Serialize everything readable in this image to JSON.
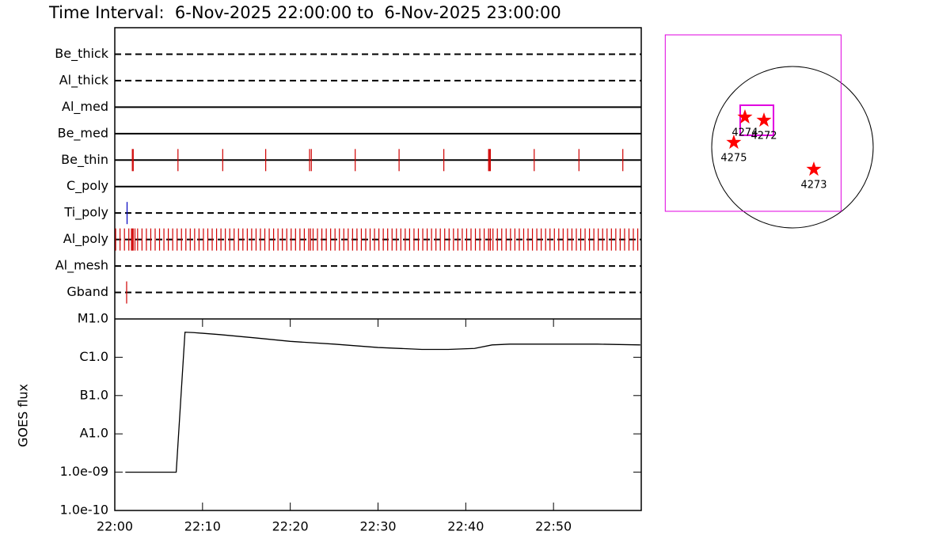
{
  "chart_data": [
    {
      "type": "timeline",
      "title": "Time Interval:  6-Nov-2025 22:00:00 to  6-Nov-2025 23:00:00",
      "xlim": [
        0,
        60
      ],
      "rows": [
        {
          "name": "Be_thick",
          "line": "dashed",
          "times": []
        },
        {
          "name": "Al_thick",
          "line": "dashed",
          "times": []
        },
        {
          "name": "Al_med",
          "line": "solid",
          "times": []
        },
        {
          "name": "Be_med",
          "line": "solid",
          "times": []
        },
        {
          "name": "Be_thin",
          "line": "solid",
          "color": "#d00000",
          "times": [
            2.0,
            2.1,
            7.2,
            12.3,
            17.2,
            22.2,
            22.4,
            27.4,
            32.4,
            37.5,
            42.6,
            42.7,
            42.8,
            47.8,
            52.9,
            57.9
          ]
        },
        {
          "name": "C_poly",
          "line": "solid",
          "times": []
        },
        {
          "name": "Ti_poly",
          "line": "dashed",
          "color": "#0000c0",
          "times": [
            1.4
          ]
        },
        {
          "name": "Al_poly",
          "line": "dashed",
          "color": "#d00000",
          "times": [
            0.1,
            0.6,
            1.1,
            1.6,
            1.9,
            2.0,
            2.1,
            2.3,
            2.6,
            3.1,
            3.6,
            4.1,
            4.6,
            5.1,
            5.6,
            6.1,
            6.6,
            7.1,
            7.6,
            8.1,
            8.6,
            9.1,
            9.6,
            10.1,
            10.6,
            11.1,
            11.6,
            12.1,
            12.6,
            13.1,
            13.6,
            14.1,
            14.6,
            15.1,
            15.6,
            16.1,
            16.6,
            17.1,
            17.6,
            18.1,
            18.6,
            19.1,
            19.6,
            20.1,
            20.6,
            21.1,
            21.6,
            22.1,
            22.3,
            22.6,
            23.1,
            23.6,
            24.1,
            24.6,
            25.1,
            25.6,
            26.1,
            26.6,
            27.1,
            27.6,
            28.1,
            28.6,
            29.1,
            29.6,
            30.1,
            30.6,
            31.1,
            31.6,
            32.1,
            32.6,
            33.1,
            33.6,
            34.1,
            34.6,
            35.1,
            35.6,
            36.1,
            36.6,
            37.1,
            37.6,
            38.1,
            38.6,
            39.1,
            39.6,
            40.1,
            40.6,
            41.1,
            41.6,
            42.1,
            42.6,
            42.8,
            43.1,
            43.6,
            44.1,
            44.6,
            45.1,
            45.6,
            46.1,
            46.6,
            47.1,
            47.6,
            48.1,
            48.6,
            49.1,
            49.6,
            50.1,
            50.6,
            51.1,
            51.6,
            52.1,
            52.6,
            53.1,
            53.6,
            54.1,
            54.6,
            55.1,
            55.6,
            56.1,
            56.6,
            57.1,
            57.6,
            58.1,
            58.6,
            59.1,
            59.6
          ]
        },
        {
          "name": "Al_mesh",
          "line": "dashed",
          "times": []
        },
        {
          "name": "Gband",
          "line": "dashed",
          "color": "#d00000",
          "times": [
            1.35
          ]
        }
      ]
    },
    {
      "type": "line",
      "ylabel": "GOES flux",
      "log": true,
      "color": "#000000",
      "x": [
        1.2,
        7.0,
        8.0,
        9.0,
        12,
        16,
        20,
        25,
        30,
        35,
        38,
        41,
        43,
        45,
        50,
        55,
        59.9
      ],
      "values": [
        1e-09,
        1e-09,
        4.5e-06,
        4.4e-06,
        3.9e-06,
        3.2e-06,
        2.6e-06,
        2.2e-06,
        1.8e-06,
        1.6e-06,
        1.6e-06,
        1.7e-06,
        2.1e-06,
        2.2e-06,
        2.2e-06,
        2.2e-06,
        2.1e-06
      ],
      "xlim": [
        0,
        60
      ],
      "xticks": [
        {
          "value": 0,
          "label": "22:00"
        },
        {
          "value": 10,
          "label": "22:10"
        },
        {
          "value": 20,
          "label": "22:20"
        },
        {
          "value": 30,
          "label": "22:30"
        },
        {
          "value": 40,
          "label": "22:40"
        },
        {
          "value": 50,
          "label": "22:50"
        }
      ],
      "ylim": [
        1e-10,
        1e-05
      ],
      "yticks": [
        {
          "value": 1e-10,
          "label": "1.0e-10"
        },
        {
          "value": 1e-09,
          "label": "1.0e-09"
        },
        {
          "value": 1e-08,
          "label": "A1.0"
        },
        {
          "value": 1e-07,
          "label": "B1.0"
        },
        {
          "value": 1e-06,
          "label": "C1.0"
        },
        {
          "value": 1e-05,
          "label": "M1.0"
        }
      ]
    },
    {
      "type": "map",
      "sun_radius": 975,
      "fov_color": "#e000e0",
      "point_color": "#ff0000",
      "fov": {
        "xlim": [
          -1536,
          587
        ],
        "ylim": [
          -774,
          1357
        ]
      },
      "box": {
        "xlim": [
          -631,
          -229
        ],
        "ylim": [
          144,
          507
        ]
      },
      "points": [
        {
          "name": "4274",
          "x": -574,
          "y": 363
        },
        {
          "name": "4272",
          "x": -344,
          "y": 325
        },
        {
          "name": "4275",
          "x": -708,
          "y": 57
        },
        {
          "name": "4273",
          "x": 258,
          "y": -268
        }
      ]
    }
  ]
}
